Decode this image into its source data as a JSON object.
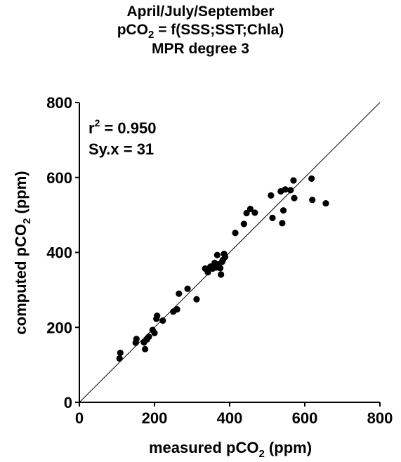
{
  "chart_data": {
    "type": "scatter",
    "title_lines": [
      "April/July/September",
      "pCO2 = f(SSS;SST;Chla)",
      "MPR degree 3"
    ],
    "xlabel": "measured pCO2 (ppm)",
    "ylabel": "computed pCO2 (ppm)",
    "xlim": [
      0,
      800
    ],
    "ylim": [
      0,
      800
    ],
    "xticks": [
      0,
      200,
      400,
      600,
      800
    ],
    "yticks": [
      0,
      200,
      400,
      600,
      800
    ],
    "grid": false,
    "reference_line": "1:1",
    "annotations": [
      "r² = 0.950",
      "Sy.x = 31"
    ],
    "points": [
      [
        107,
        117
      ],
      [
        109,
        132
      ],
      [
        150,
        159
      ],
      [
        152,
        169
      ],
      [
        172,
        160
      ],
      [
        175,
        142
      ],
      [
        180,
        168
      ],
      [
        185,
        175
      ],
      [
        195,
        193
      ],
      [
        200,
        185
      ],
      [
        205,
        223
      ],
      [
        207,
        231
      ],
      [
        222,
        218
      ],
      [
        250,
        242
      ],
      [
        260,
        248
      ],
      [
        265,
        290
      ],
      [
        288,
        303
      ],
      [
        312,
        275
      ],
      [
        335,
        357
      ],
      [
        342,
        347
      ],
      [
        349,
        362
      ],
      [
        355,
        357
      ],
      [
        360,
        372
      ],
      [
        365,
        360
      ],
      [
        367,
        393
      ],
      [
        370,
        368
      ],
      [
        375,
        358
      ],
      [
        377,
        341
      ],
      [
        380,
        375
      ],
      [
        382,
        380
      ],
      [
        385,
        396
      ],
      [
        388,
        388
      ],
      [
        415,
        452
      ],
      [
        438,
        476
      ],
      [
        445,
        505
      ],
      [
        455,
        516
      ],
      [
        467,
        506
      ],
      [
        510,
        552
      ],
      [
        514,
        492
      ],
      [
        536,
        563
      ],
      [
        540,
        478
      ],
      [
        543,
        512
      ],
      [
        548,
        568
      ],
      [
        562,
        566
      ],
      [
        570,
        592
      ],
      [
        572,
        545
      ],
      [
        618,
        597
      ],
      [
        620,
        540
      ],
      [
        656,
        531
      ]
    ]
  }
}
